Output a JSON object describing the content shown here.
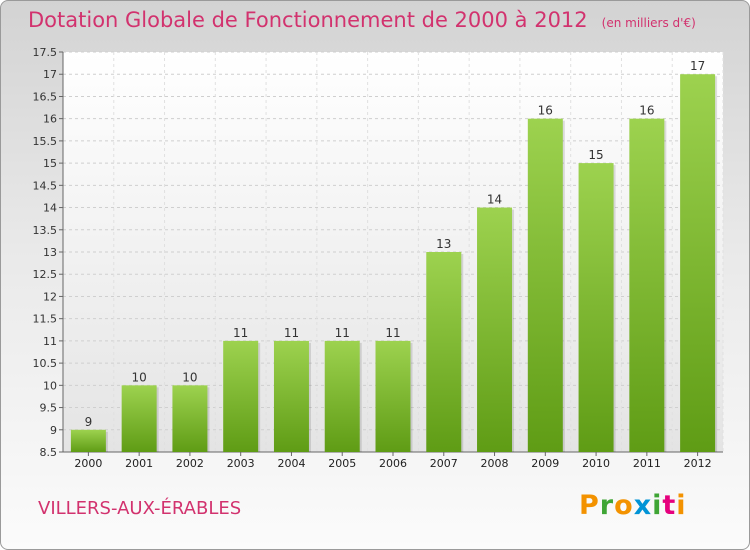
{
  "header": {
    "title": "Dotation Globale de Fonctionnement de 2000 à 2012",
    "unit": "(en milliers d'€)"
  },
  "footer": {
    "commune": "VILLERS-AUX-ÉRABLES",
    "logo": "Proxiti"
  },
  "colors": {
    "title": "#d2326e",
    "bar_top": "#9dd24f",
    "bar_bottom": "#5f9c15",
    "logo_letters": [
      "#f39200",
      "#3fa535",
      "#f39200",
      "#0093d6",
      "#3fa535",
      "#e6007e",
      "#f39200"
    ]
  },
  "chart_data": {
    "type": "bar",
    "categories": [
      "2000",
      "2001",
      "2002",
      "2003",
      "2004",
      "2005",
      "2006",
      "2007",
      "2008",
      "2009",
      "2010",
      "2011",
      "2012"
    ],
    "values": [
      9,
      10,
      10,
      11,
      11,
      11,
      11,
      13,
      14,
      16,
      15,
      16,
      17
    ],
    "data_labels": [
      "9",
      "10",
      "10",
      "11",
      "11",
      "11",
      "11",
      "13",
      "14",
      "16",
      "15",
      "16",
      "17"
    ],
    "ylim": [
      8.5,
      17.5
    ],
    "yticks": [
      8.5,
      9,
      9.5,
      10,
      10.5,
      11,
      11.5,
      12,
      12.5,
      13,
      13.5,
      14,
      14.5,
      15,
      15.5,
      16,
      16.5,
      17,
      17.5
    ],
    "ytick_labels": [
      "8.5",
      "9",
      "9.5",
      "10",
      "10.5",
      "11",
      "11.5",
      "12",
      "12.5",
      "13",
      "13.5",
      "14",
      "14.5",
      "15",
      "15.5",
      "16",
      "16.5",
      "17",
      "17.5"
    ],
    "grid": true,
    "legend": "none"
  }
}
